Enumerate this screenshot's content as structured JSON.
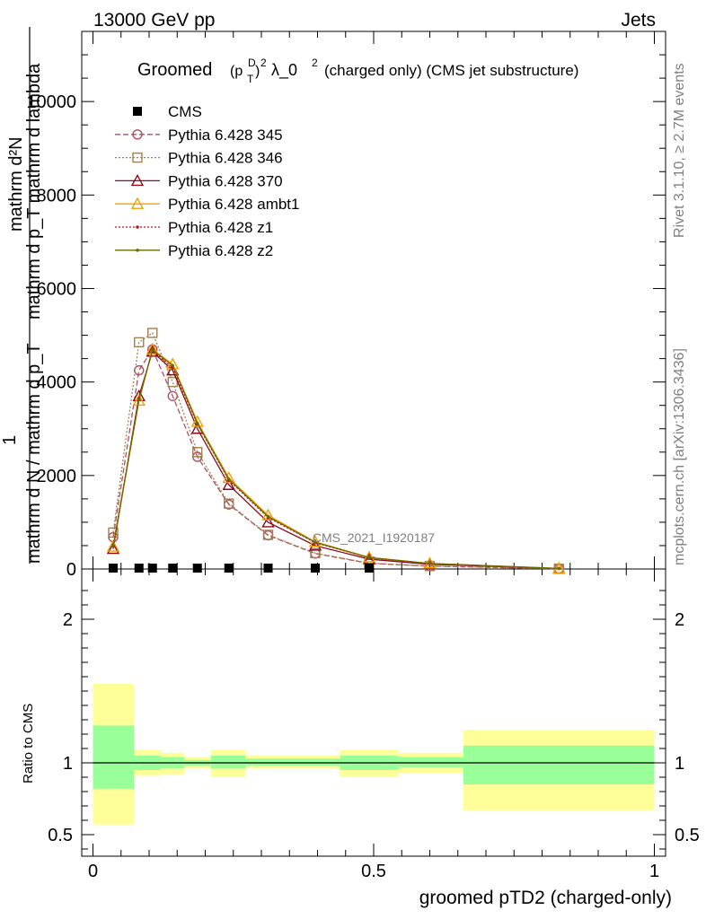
{
  "header": {
    "left": "13000 GeV pp",
    "right": "Jets"
  },
  "side": {
    "rivet": "Rivet 3.1.10, ≥ 2.7M events",
    "mcplots": "mcplots.cern.ch [arXiv:1306.3436]"
  },
  "watermark": "CMS_2021_I1920187",
  "title": {
    "prefix": "Groomed",
    "p": "(p",
    "sub": "T",
    "sup": "D",
    "close": ")",
    "pow": "2",
    "rest": "λ_0",
    "pow2": "2",
    "tail": "(charged only) (CMS jet substructure)"
  },
  "ylabel": {
    "top": "mathrm d²N",
    "top_sub": "mathrm d p_T mathrm d lambda",
    "one": "1",
    "bottom": "mathrm d N / mathrm d p_T"
  },
  "ratio_ylabel": "Ratio to CMS",
  "xlabel": "groomed pTD2 (charged-only)",
  "legend": [
    {
      "label": "CMS",
      "color": "#000000",
      "marker": "square-filled",
      "dash": ""
    },
    {
      "label": "Pythia 6.428 345",
      "color": "#b34d5c",
      "marker": "circle",
      "dash": "6,3"
    },
    {
      "label": "Pythia 6.428 346",
      "color": "#a08050",
      "marker": "square",
      "dash": "2,2"
    },
    {
      "label": "Pythia 6.428 370",
      "color": "#8b0a1a",
      "marker": "triangle",
      "dash": ""
    },
    {
      "label": "Pythia 6.428 ambt1",
      "color": "#f0a000",
      "marker": "triangle",
      "dash": ""
    },
    {
      "label": "Pythia 6.428 z1",
      "color": "#c01010",
      "marker": "dot",
      "dash": "2,2"
    },
    {
      "label": "Pythia 6.428 z2",
      "color": "#6b6b00",
      "marker": "dot",
      "dash": ""
    }
  ],
  "chart_data": {
    "type": "line",
    "xlim": [
      -0.02,
      1.02
    ],
    "ylim": [
      0,
      11500
    ],
    "yticks": [
      {
        "v": 0,
        "label": "0"
      },
      {
        "v": 2000,
        "label": "2000"
      },
      {
        "v": 4000,
        "label": "4000"
      },
      {
        "v": 6000,
        "label": "6000"
      },
      {
        "v": 8000,
        "label": "8000"
      },
      {
        "v": 10000,
        "label": "10000"
      }
    ],
    "xticks": [
      {
        "v": 0,
        "label": "0"
      },
      {
        "v": 0.5,
        "label": "0.5"
      },
      {
        "v": 1,
        "label": "1"
      }
    ],
    "x": [
      0.036,
      0.082,
      0.106,
      0.142,
      0.186,
      0.242,
      0.312,
      0.396,
      0.492,
      0.6,
      0.83
    ],
    "series": [
      {
        "name": "CMS",
        "values": [
          0,
          0,
          0,
          0,
          0,
          0,
          0,
          0,
          0,
          null,
          null
        ]
      },
      {
        "name": "Pythia 6.428 345",
        "values": [
          680,
          4250,
          4700,
          3700,
          2400,
          1380,
          720,
          330,
          120,
          60,
          5
        ]
      },
      {
        "name": "Pythia 6.428 346",
        "values": [
          780,
          4850,
          5050,
          4000,
          2500,
          1400,
          730,
          340,
          125,
          62,
          5
        ]
      },
      {
        "name": "Pythia 6.428 370",
        "values": [
          430,
          3700,
          4650,
          4250,
          3000,
          1800,
          1000,
          500,
          210,
          100,
          10
        ]
      },
      {
        "name": "Pythia 6.428 ambt1",
        "values": [
          480,
          3600,
          4700,
          4380,
          3150,
          1950,
          1150,
          580,
          250,
          120,
          12
        ]
      },
      {
        "name": "Pythia 6.428 z1",
        "values": [
          500,
          3650,
          4680,
          4300,
          3100,
          1900,
          1100,
          560,
          240,
          115,
          11
        ]
      },
      {
        "name": "Pythia 6.428 z2",
        "values": [
          490,
          3620,
          4690,
          4350,
          3120,
          1920,
          1120,
          570,
          245,
          118,
          11
        ]
      }
    ],
    "ratio": {
      "ylim": [
        0.35,
        2.35
      ],
      "yticks": [
        {
          "v": 0.5,
          "label": "0.5"
        },
        {
          "v": 1,
          "label": "1"
        },
        {
          "v": 2,
          "label": "2"
        }
      ],
      "bands": [
        {
          "x0": 0.0,
          "x1": 0.073,
          "in_lo": 0.82,
          "in_hi": 1.26,
          "out_lo": 0.57,
          "out_hi": 1.55
        },
        {
          "x0": 0.073,
          "x1": 0.12,
          "in_lo": 0.95,
          "in_hi": 1.05,
          "out_lo": 0.91,
          "out_hi": 1.09
        },
        {
          "x0": 0.12,
          "x1": 0.163,
          "in_lo": 0.96,
          "in_hi": 1.04,
          "out_lo": 0.92,
          "out_hi": 1.07
        },
        {
          "x0": 0.163,
          "x1": 0.21,
          "in_lo": 0.98,
          "in_hi": 1.02,
          "out_lo": 0.96,
          "out_hi": 1.04
        },
        {
          "x0": 0.21,
          "x1": 0.272,
          "in_lo": 0.96,
          "in_hi": 1.05,
          "out_lo": 0.9,
          "out_hi": 1.09
        },
        {
          "x0": 0.272,
          "x1": 0.352,
          "in_lo": 0.98,
          "in_hi": 1.03,
          "out_lo": 0.96,
          "out_hi": 1.05
        },
        {
          "x0": 0.352,
          "x1": 0.44,
          "in_lo": 0.98,
          "in_hi": 1.03,
          "out_lo": 0.96,
          "out_hi": 1.05
        },
        {
          "x0": 0.44,
          "x1": 0.544,
          "in_lo": 0.95,
          "in_hi": 1.05,
          "out_lo": 0.9,
          "out_hi": 1.09
        },
        {
          "x0": 0.544,
          "x1": 0.66,
          "in_lo": 0.97,
          "in_hi": 1.04,
          "out_lo": 0.93,
          "out_hi": 1.07
        },
        {
          "x0": 0.66,
          "x1": 1.0,
          "in_lo": 0.85,
          "in_hi": 1.12,
          "out_lo": 0.67,
          "out_hi": 1.23
        }
      ]
    }
  }
}
